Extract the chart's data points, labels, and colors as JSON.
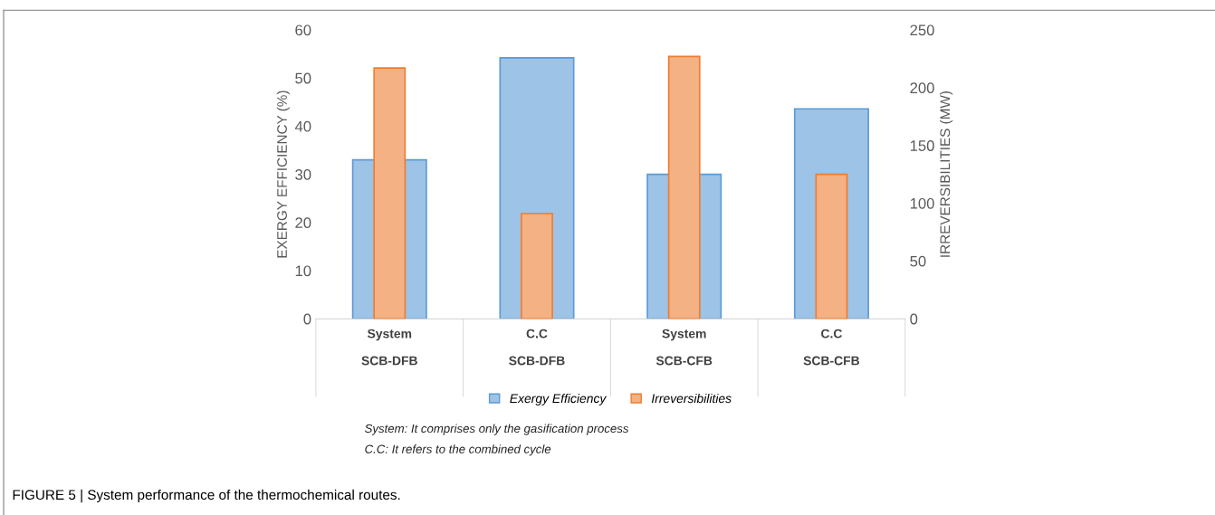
{
  "chart_data": {
    "type": "bar",
    "title": "FIGURE 5 | System performance of the thermochemical routes.",
    "categories": [
      "System\n\nSCB-DFB",
      "C.C\n\nSCB-DFB",
      "System\n\nSCB-CFB",
      "C.C\n\nSCB-CFB"
    ],
    "series": [
      {
        "name": "Exergy Efficiency",
        "color": "#9dc3e6",
        "values": [
          33,
          54.2,
          30,
          43.6
        ]
      },
      {
        "name": "Irreversibilities",
        "color": "#f4b183",
        "axis": "y2",
        "values": [
          217,
          91,
          227,
          125
        ]
      }
    ],
    "ylabel": "EXERGY EFFICIENCY (%)",
    "y2label": "IRREVERSIBILITIES (MW)",
    "ylim": [
      0,
      60
    ],
    "yticks": [
      0,
      10,
      20,
      30,
      40,
      50,
      60
    ],
    "y2lim": [
      0,
      250
    ],
    "y2ticks": [
      0,
      50,
      100,
      150,
      200,
      250
    ],
    "grid": false,
    "legend": "bottom",
    "annotations": [
      "System: It comprises only the gasification process",
      "C.C: It refers to the combined cycle"
    ]
  }
}
